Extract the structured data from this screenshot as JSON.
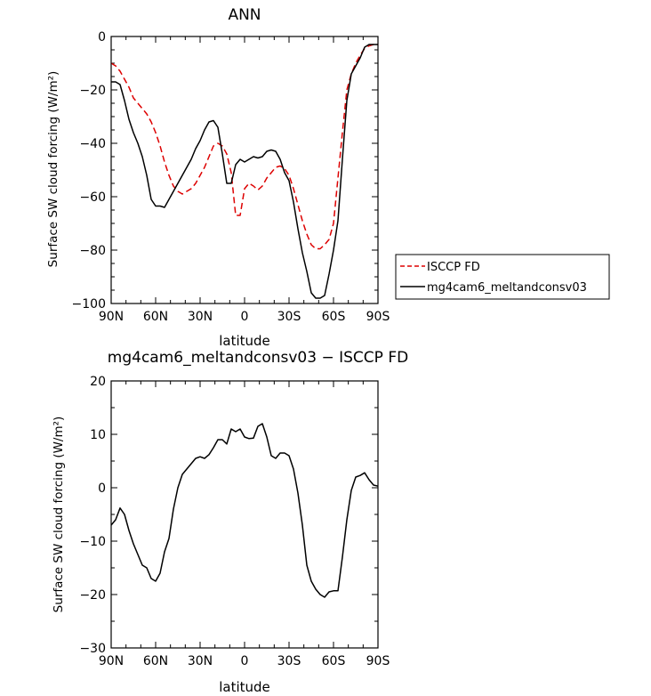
{
  "chart_data": [
    {
      "type": "line",
      "title": "ANN",
      "xlabel": "latitude",
      "ylabel": "Surface SW cloud forcing (W/m²)",
      "xlim": [
        90,
        -90
      ],
      "ylim": [
        -100,
        0
      ],
      "xticks": [
        90,
        60,
        30,
        0,
        -30,
        -60,
        -90
      ],
      "xtick_labels": [
        "90N",
        "60N",
        "30N",
        "0",
        "30S",
        "60S",
        "90S"
      ],
      "yticks": [
        0,
        -20,
        -40,
        -60,
        -80,
        -100
      ],
      "ytick_labels": [
        "0",
        "−20",
        "−40",
        "−60",
        "−80",
        "−100"
      ],
      "legend": {
        "placement": "outside-right"
      },
      "series": [
        {
          "name": "ISCCP FD",
          "color": "#dd0000",
          "dash": "dashed",
          "x": [
            90,
            87,
            84,
            81,
            78,
            75,
            72,
            69,
            66,
            63,
            60,
            57,
            54,
            51,
            48,
            45,
            42,
            39,
            36,
            33,
            30,
            27,
            24,
            21,
            18,
            15,
            12,
            9,
            6,
            3,
            0,
            -3,
            -6,
            -9,
            -12,
            -15,
            -18,
            -21,
            -24,
            -27,
            -30,
            -33,
            -36,
            -39,
            -42,
            -45,
            -48,
            -51,
            -54,
            -57,
            -60,
            -63,
            -66,
            -69,
            -72,
            -75,
            -78,
            -81,
            -84,
            -87,
            -90
          ],
          "y": [
            -10,
            -11,
            -13,
            -16,
            -19,
            -23,
            -25,
            -27,
            -29,
            -32,
            -36,
            -41,
            -47,
            -52,
            -56,
            -58,
            -59,
            -58,
            -57,
            -55,
            -52,
            -49,
            -45,
            -41,
            -40,
            -41,
            -44,
            -51,
            -67,
            -67,
            -57,
            -55,
            -56,
            -57.5,
            -56,
            -53,
            -51,
            -49,
            -48.5,
            -49.5,
            -52,
            -57,
            -63,
            -69,
            -74,
            -78,
            -79.5,
            -79.5,
            -78,
            -76,
            -70,
            -53,
            -36,
            -20,
            -14,
            -10,
            -7,
            -4.5,
            -3.5,
            -3,
            -3
          ]
        },
        {
          "name": "mg4cam6_meltandconsv03",
          "color": "#000000",
          "dash": "solid",
          "x": [
            90,
            87,
            84,
            81,
            78,
            75,
            72,
            69,
            66,
            63,
            60,
            57,
            54,
            51,
            48,
            45,
            42,
            39,
            36,
            33,
            30,
            27,
            24,
            21,
            18,
            15,
            12,
            9,
            6,
            3,
            0,
            -3,
            -6,
            -9,
            -12,
            -15,
            -18,
            -21,
            -24,
            -27,
            -30,
            -33,
            -36,
            -39,
            -42,
            -45,
            -48,
            -51,
            -54,
            -57,
            -60,
            -63,
            -66,
            -69,
            -72,
            -75,
            -78,
            -81,
            -84,
            -87,
            -90
          ],
          "y": [
            -17,
            -17,
            -18,
            -24,
            -31,
            -36,
            -40,
            -45,
            -52,
            -61,
            -63.5,
            -63.5,
            -64,
            -61,
            -58,
            -55,
            -52,
            -49,
            -46,
            -42,
            -39,
            -35,
            -32,
            -31.5,
            -34,
            -44,
            -55,
            -55,
            -48,
            -46,
            -47,
            -46,
            -45,
            -45.5,
            -45,
            -43,
            -42.5,
            -43,
            -46,
            -51,
            -54,
            -62,
            -72,
            -81,
            -88,
            -96,
            -98,
            -98,
            -97,
            -89,
            -80,
            -69,
            -46,
            -24,
            -14,
            -11,
            -8,
            -4,
            -3,
            -3,
            -3
          ]
        }
      ]
    },
    {
      "type": "line",
      "title": "mg4cam6_meltandconsv03 − ISCCP FD",
      "xlabel": "latitude",
      "ylabel": "Surface SW cloud forcing (W/m²)",
      "xlim": [
        90,
        -90
      ],
      "ylim": [
        -30,
        20
      ],
      "xticks": [
        90,
        60,
        30,
        0,
        -30,
        -60,
        -90
      ],
      "xtick_labels": [
        "90N",
        "60N",
        "30N",
        "0",
        "30S",
        "60S",
        "90S"
      ],
      "yticks": [
        20,
        10,
        0,
        -10,
        -20,
        -30
      ],
      "ytick_labels": [
        "20",
        "10",
        "0",
        "−10",
        "−20",
        "−30"
      ],
      "series": [
        {
          "color": "#000000",
          "dash": "solid",
          "x": [
            90,
            87,
            84,
            81,
            78,
            75,
            72,
            69,
            66,
            63,
            60,
            57,
            54,
            51,
            48,
            45,
            42,
            39,
            36,
            33,
            30,
            27,
            24,
            21,
            18,
            15,
            12,
            9,
            6,
            3,
            0,
            -3,
            -6,
            -9,
            -12,
            -15,
            -18,
            -21,
            -24,
            -27,
            -30,
            -33,
            -36,
            -39,
            -42,
            -45,
            -48,
            -51,
            -54,
            -57,
            -60,
            -63,
            -66,
            -69,
            -72,
            -75,
            -78,
            -81,
            -84,
            -87,
            -90
          ],
          "y": [
            -7,
            -6,
            -3.8,
            -5,
            -8,
            -10.5,
            -12.5,
            -14.5,
            -15,
            -17,
            -17.5,
            -16,
            -12,
            -9.5,
            -4,
            0,
            2.5,
            3.5,
            4.5,
            5.5,
            5.8,
            5.5,
            6.2,
            7.5,
            9,
            9,
            8.2,
            11,
            10.5,
            11,
            9.5,
            9.2,
            9.3,
            11.5,
            12,
            9.5,
            6,
            5.5,
            6.5,
            6.5,
            6,
            3.5,
            -1,
            -7,
            -14.5,
            -17.5,
            -19,
            -20,
            -20.5,
            -19.5,
            -19.3,
            -19.3,
            -13,
            -6,
            -0.5,
            2,
            2.3,
            2.8,
            1.5,
            0.5,
            0.3
          ]
        }
      ]
    }
  ]
}
